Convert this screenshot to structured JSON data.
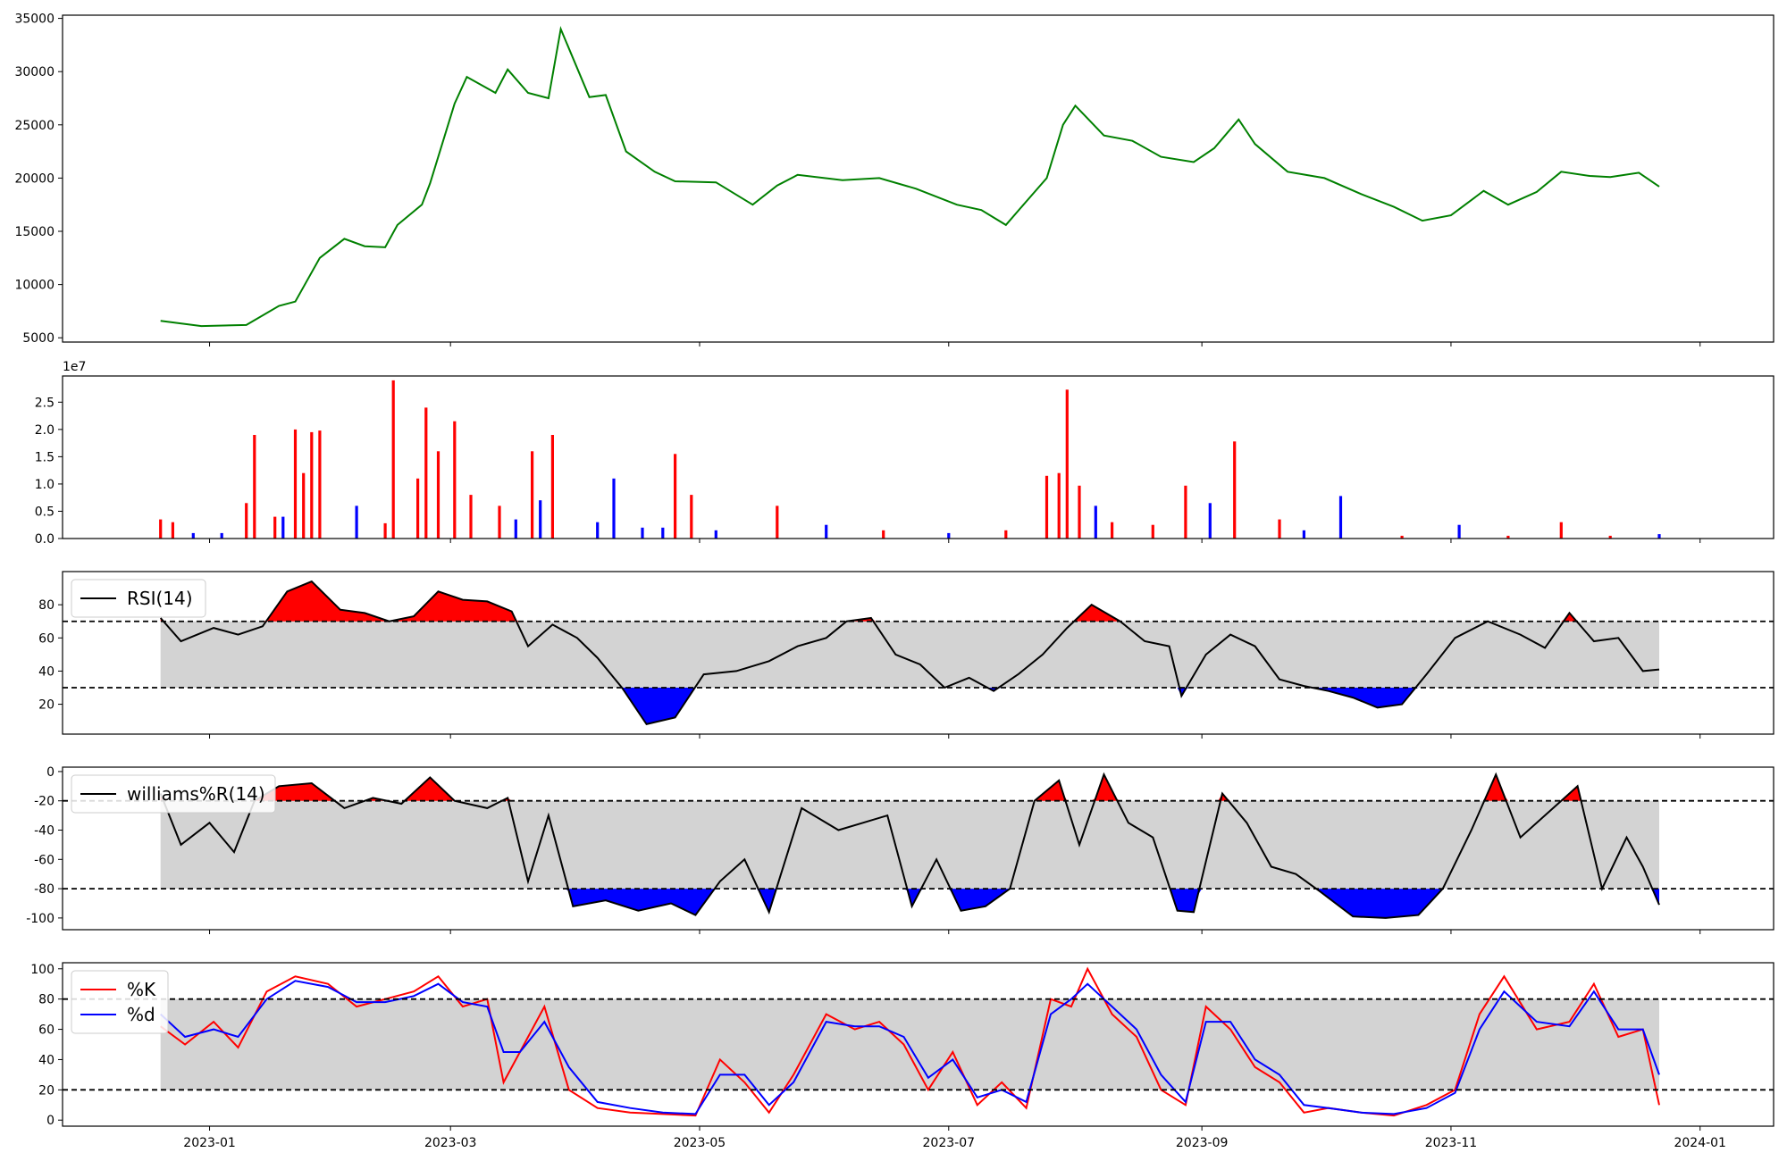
{
  "figure": {
    "x_ticks": [
      "2023-01",
      "2023-03",
      "2023-05",
      "2023-07",
      "2023-09",
      "2023-11",
      "2024-01"
    ],
    "x_tick_dates": [
      "2023-01-01",
      "2023-03-01",
      "2023-05-01",
      "2023-07-01",
      "2023-09-01",
      "2023-11-01",
      "2024-01-01"
    ],
    "x_range": [
      "2022-11-26",
      "2024-01-19"
    ],
    "data_start": "2022-12-20",
    "data_end": "2023-12-22",
    "colors": {
      "price": "#008000",
      "up": "#ff0000",
      "down": "#0000ff",
      "neutral": "#000000",
      "band": "#d3d3d3",
      "k": "#ff0000",
      "d": "#0000ff"
    }
  },
  "chart_data": [
    {
      "type": "line",
      "name": "price",
      "ylim": [
        4600,
        35300
      ],
      "yticks": [
        "5000",
        "10000",
        "15000",
        "20000",
        "25000",
        "30000",
        "35000"
      ],
      "x": [
        "2022-12-20",
        "2022-12-30",
        "2023-01-10",
        "2023-01-18",
        "2023-01-22",
        "2023-01-28",
        "2023-02-03",
        "2023-02-08",
        "2023-02-13",
        "2023-02-16",
        "2023-02-22",
        "2023-02-24",
        "2023-03-02",
        "2023-03-05",
        "2023-03-12",
        "2023-03-15",
        "2023-03-20",
        "2023-03-25",
        "2023-03-28",
        "2023-04-04",
        "2023-04-08",
        "2023-04-13",
        "2023-04-20",
        "2023-04-25",
        "2023-05-05",
        "2023-05-14",
        "2023-05-20",
        "2023-05-25",
        "2023-06-05",
        "2023-06-14",
        "2023-06-23",
        "2023-07-03",
        "2023-07-09",
        "2023-07-15",
        "2023-07-20",
        "2023-07-25",
        "2023-07-29",
        "2023-08-01",
        "2023-08-08",
        "2023-08-15",
        "2023-08-22",
        "2023-08-30",
        "2023-09-04",
        "2023-09-10",
        "2023-09-14",
        "2023-09-22",
        "2023-10-01",
        "2023-10-10",
        "2023-10-18",
        "2023-10-25",
        "2023-11-01",
        "2023-11-09",
        "2023-11-15",
        "2023-11-22",
        "2023-11-28",
        "2023-12-05",
        "2023-12-10",
        "2023-12-17",
        "2023-12-22"
      ],
      "y": [
        6600,
        6100,
        6200,
        8000,
        8400,
        12500,
        14300,
        13600,
        13500,
        15600,
        17500,
        19500,
        27000,
        29500,
        28000,
        30200,
        28000,
        27500,
        34000,
        27600,
        27800,
        22500,
        20600,
        19700,
        19600,
        17500,
        19300,
        20300,
        19800,
        20000,
        19000,
        17500,
        17000,
        15600,
        17800,
        20000,
        25000,
        26800,
        24000,
        23500,
        22000,
        21500,
        22800,
        25500,
        23200,
        20600,
        20000,
        18500,
        17300,
        16000,
        16500,
        18800,
        17500,
        18700,
        20600,
        20200,
        20100,
        20500,
        19200
      ]
    },
    {
      "type": "bar",
      "name": "volume",
      "y_offset_label": "1e7",
      "ylim": [
        0,
        2.98
      ],
      "yticks": [
        "0.0",
        "0.5",
        "1.0",
        "1.5",
        "2.0",
        "2.5"
      ],
      "x": [
        "2022-12-20",
        "2022-12-23",
        "2022-12-28",
        "2023-01-04",
        "2023-01-10",
        "2023-01-12",
        "2023-01-17",
        "2023-01-19",
        "2023-01-22",
        "2023-01-24",
        "2023-01-26",
        "2023-01-28",
        "2023-02-06",
        "2023-02-13",
        "2023-02-15",
        "2023-02-21",
        "2023-02-23",
        "2023-02-26",
        "2023-03-02",
        "2023-03-06",
        "2023-03-13",
        "2023-03-17",
        "2023-03-21",
        "2023-03-23",
        "2023-03-26",
        "2023-04-06",
        "2023-04-10",
        "2023-04-17",
        "2023-04-22",
        "2023-04-25",
        "2023-04-29",
        "2023-05-05",
        "2023-05-20",
        "2023-06-01",
        "2023-06-15",
        "2023-07-01",
        "2023-07-15",
        "2023-07-25",
        "2023-07-28",
        "2023-07-30",
        "2023-08-02",
        "2023-08-06",
        "2023-08-10",
        "2023-08-20",
        "2023-08-28",
        "2023-09-03",
        "2023-09-09",
        "2023-09-20",
        "2023-09-26",
        "2023-10-05",
        "2023-10-20",
        "2023-11-03",
        "2023-11-15",
        "2023-11-28",
        "2023-12-10",
        "2023-12-22"
      ],
      "values": [
        0.35,
        0.3,
        0.1,
        0.1,
        0.65,
        1.9,
        0.4,
        0.4,
        2.0,
        1.2,
        1.95,
        1.98,
        0.6,
        0.28,
        2.9,
        1.1,
        2.4,
        1.6,
        2.15,
        0.8,
        0.6,
        0.35,
        1.6,
        0.7,
        1.9,
        0.3,
        1.1,
        0.2,
        0.2,
        1.55,
        0.8,
        0.15,
        0.6,
        0.25,
        0.15,
        0.1,
        0.15,
        1.15,
        1.2,
        2.73,
        0.97,
        0.6,
        0.3,
        0.25,
        0.97,
        0.65,
        1.78,
        0.35,
        0.15,
        0.78,
        0.05,
        0.25,
        0.05,
        0.3,
        0.05,
        0.08
      ],
      "direction": [
        "up",
        "up",
        "down",
        "down",
        "up",
        "up",
        "up",
        "down",
        "up",
        "up",
        "up",
        "up",
        "down",
        "up",
        "up",
        "up",
        "up",
        "up",
        "up",
        "up",
        "up",
        "down",
        "up",
        "down",
        "up",
        "down",
        "down",
        "down",
        "down",
        "up",
        "up",
        "down",
        "up",
        "down",
        "up",
        "down",
        "up",
        "up",
        "up",
        "up",
        "up",
        "down",
        "up",
        "up",
        "up",
        "down",
        "up",
        "up",
        "down",
        "down",
        "up",
        "down",
        "up",
        "up",
        "up",
        "down"
      ]
    },
    {
      "type": "line",
      "name": "rsi",
      "legend": "RSI(14)",
      "ylim": [
        2,
        100
      ],
      "yticks": [
        "20",
        "40",
        "60",
        "80"
      ],
      "thresholds": [
        70,
        30
      ],
      "x": [
        "2022-12-20",
        "2022-12-25",
        "2023-01-02",
        "2023-01-08",
        "2023-01-14",
        "2023-01-20",
        "2023-01-26",
        "2023-02-02",
        "2023-02-08",
        "2023-02-14",
        "2023-02-20",
        "2023-02-26",
        "2023-03-04",
        "2023-03-10",
        "2023-03-16",
        "2023-03-20",
        "2023-03-26",
        "2023-04-01",
        "2023-04-06",
        "2023-04-12",
        "2023-04-18",
        "2023-04-25",
        "2023-05-02",
        "2023-05-10",
        "2023-05-18",
        "2023-05-25",
        "2023-06-01",
        "2023-06-06",
        "2023-06-12",
        "2023-06-18",
        "2023-06-24",
        "2023-06-30",
        "2023-07-06",
        "2023-07-12",
        "2023-07-18",
        "2023-07-24",
        "2023-07-30",
        "2023-08-05",
        "2023-08-12",
        "2023-08-18",
        "2023-08-24",
        "2023-08-27",
        "2023-09-02",
        "2023-09-08",
        "2023-09-14",
        "2023-09-20",
        "2023-09-26",
        "2023-10-02",
        "2023-10-08",
        "2023-10-14",
        "2023-10-20",
        "2023-10-26",
        "2023-11-02",
        "2023-11-10",
        "2023-11-18",
        "2023-11-24",
        "2023-11-30",
        "2023-12-06",
        "2023-12-12",
        "2023-12-18",
        "2023-12-22"
      ],
      "y": [
        72,
        58,
        66,
        62,
        67,
        88,
        94,
        77,
        75,
        70,
        73,
        88,
        83,
        82,
        76,
        55,
        68,
        60,
        48,
        30,
        8,
        12,
        38,
        40,
        46,
        55,
        60,
        70,
        72,
        50,
        44,
        30,
        36,
        28,
        38,
        50,
        66,
        80,
        70,
        58,
        55,
        25,
        50,
        62,
        55,
        35,
        31,
        28,
        24,
        18,
        20,
        38,
        60,
        70,
        62,
        54,
        75,
        58,
        60,
        40,
        41
      ]
    },
    {
      "type": "line",
      "name": "williams_r",
      "legend": "williams%R(14)",
      "ylim": [
        -108,
        3
      ],
      "yticks": [
        "0",
        "-20",
        "-40",
        "-60",
        "-80",
        "-100"
      ],
      "thresholds": [
        -20,
        -80
      ],
      "x": [
        "2022-12-20",
        "2022-12-25",
        "2023-01-01",
        "2023-01-07",
        "2023-01-12",
        "2023-01-18",
        "2023-01-26",
        "2023-02-03",
        "2023-02-10",
        "2023-02-17",
        "2023-02-24",
        "2023-03-02",
        "2023-03-10",
        "2023-03-15",
        "2023-03-20",
        "2023-03-25",
        "2023-03-31",
        "2023-04-08",
        "2023-04-16",
        "2023-04-24",
        "2023-04-30",
        "2023-05-06",
        "2023-05-12",
        "2023-05-18",
        "2023-05-26",
        "2023-06-04",
        "2023-06-10",
        "2023-06-16",
        "2023-06-22",
        "2023-06-28",
        "2023-07-04",
        "2023-07-10",
        "2023-07-16",
        "2023-07-22",
        "2023-07-28",
        "2023-08-02",
        "2023-08-08",
        "2023-08-14",
        "2023-08-20",
        "2023-08-26",
        "2023-08-30",
        "2023-09-06",
        "2023-09-12",
        "2023-09-18",
        "2023-09-24",
        "2023-09-30",
        "2023-10-08",
        "2023-10-16",
        "2023-10-24",
        "2023-10-30",
        "2023-11-06",
        "2023-11-12",
        "2023-11-18",
        "2023-11-26",
        "2023-12-02",
        "2023-12-08",
        "2023-12-14",
        "2023-12-18",
        "2023-12-22"
      ],
      "y": [
        -15,
        -50,
        -35,
        -55,
        -20,
        -10,
        -8,
        -25,
        -18,
        -22,
        -4,
        -20,
        -25,
        -18,
        -75,
        -30,
        -92,
        -88,
        -95,
        -90,
        -98,
        -75,
        -60,
        -96,
        -25,
        -40,
        -35,
        -30,
        -92,
        -60,
        -95,
        -92,
        -80,
        -20,
        -6,
        -50,
        -2,
        -35,
        -45,
        -95,
        -96,
        -15,
        -35,
        -65,
        -70,
        -82,
        -99,
        -100,
        -98,
        -80,
        -40,
        -2,
        -45,
        -25,
        -10,
        -80,
        -45,
        -65,
        -91
      ]
    },
    {
      "type": "line",
      "name": "stochastic",
      "legend": [
        "%K",
        "%d"
      ],
      "ylim": [
        -4,
        104
      ],
      "yticks": [
        "0",
        "20",
        "40",
        "60",
        "80",
        "100"
      ],
      "thresholds": [
        80,
        20
      ],
      "series": [
        {
          "name": "%K",
          "x": [
            "2022-12-20",
            "2022-12-26",
            "2023-01-02",
            "2023-01-08",
            "2023-01-15",
            "2023-01-22",
            "2023-01-30",
            "2023-02-06",
            "2023-02-13",
            "2023-02-20",
            "2023-02-26",
            "2023-03-04",
            "2023-03-10",
            "2023-03-14",
            "2023-03-18",
            "2023-03-24",
            "2023-03-30",
            "2023-04-06",
            "2023-04-14",
            "2023-04-22",
            "2023-04-30",
            "2023-05-06",
            "2023-05-12",
            "2023-05-18",
            "2023-05-24",
            "2023-06-01",
            "2023-06-08",
            "2023-06-14",
            "2023-06-20",
            "2023-06-26",
            "2023-07-02",
            "2023-07-08",
            "2023-07-14",
            "2023-07-20",
            "2023-07-26",
            "2023-07-31",
            "2023-08-04",
            "2023-08-10",
            "2023-08-16",
            "2023-08-22",
            "2023-08-28",
            "2023-09-02",
            "2023-09-08",
            "2023-09-14",
            "2023-09-20",
            "2023-09-26",
            "2023-10-02",
            "2023-10-10",
            "2023-10-18",
            "2023-10-26",
            "2023-11-02",
            "2023-11-08",
            "2023-11-14",
            "2023-11-22",
            "2023-11-30",
            "2023-12-06",
            "2023-12-12",
            "2023-12-18",
            "2023-12-22"
          ],
          "y": [
            62,
            50,
            65,
            48,
            85,
            95,
            90,
            75,
            80,
            85,
            95,
            75,
            80,
            25,
            45,
            75,
            20,
            8,
            5,
            4,
            3,
            40,
            25,
            5,
            30,
            70,
            60,
            65,
            50,
            20,
            45,
            10,
            25,
            8,
            80,
            75,
            100,
            70,
            55,
            20,
            10,
            75,
            60,
            35,
            25,
            5,
            8,
            5,
            3,
            10,
            20,
            70,
            95,
            60,
            65,
            90,
            55,
            60,
            10
          ]
        },
        {
          "name": "%d",
          "x": [
            "2022-12-20",
            "2022-12-26",
            "2023-01-02",
            "2023-01-08",
            "2023-01-15",
            "2023-01-22",
            "2023-01-30",
            "2023-02-06",
            "2023-02-13",
            "2023-02-20",
            "2023-02-26",
            "2023-03-04",
            "2023-03-10",
            "2023-03-14",
            "2023-03-18",
            "2023-03-24",
            "2023-03-30",
            "2023-04-06",
            "2023-04-14",
            "2023-04-22",
            "2023-04-30",
            "2023-05-06",
            "2023-05-12",
            "2023-05-18",
            "2023-05-24",
            "2023-06-01",
            "2023-06-08",
            "2023-06-14",
            "2023-06-20",
            "2023-06-26",
            "2023-07-02",
            "2023-07-08",
            "2023-07-14",
            "2023-07-20",
            "2023-07-26",
            "2023-07-31",
            "2023-08-04",
            "2023-08-10",
            "2023-08-16",
            "2023-08-22",
            "2023-08-28",
            "2023-09-02",
            "2023-09-08",
            "2023-09-14",
            "2023-09-20",
            "2023-09-26",
            "2023-10-02",
            "2023-10-10",
            "2023-10-18",
            "2023-10-26",
            "2023-11-02",
            "2023-11-08",
            "2023-11-14",
            "2023-11-22",
            "2023-11-30",
            "2023-12-06",
            "2023-12-12",
            "2023-12-18",
            "2023-12-22"
          ],
          "y": [
            70,
            55,
            60,
            55,
            80,
            92,
            88,
            78,
            78,
            82,
            90,
            78,
            75,
            45,
            45,
            65,
            35,
            12,
            8,
            5,
            4,
            30,
            30,
            10,
            25,
            65,
            62,
            62,
            55,
            28,
            40,
            15,
            20,
            12,
            70,
            80,
            90,
            75,
            60,
            30,
            12,
            65,
            65,
            40,
            30,
            10,
            8,
            5,
            4,
            8,
            18,
            60,
            85,
            65,
            62,
            85,
            60,
            60,
            30
          ]
        }
      ]
    }
  ]
}
